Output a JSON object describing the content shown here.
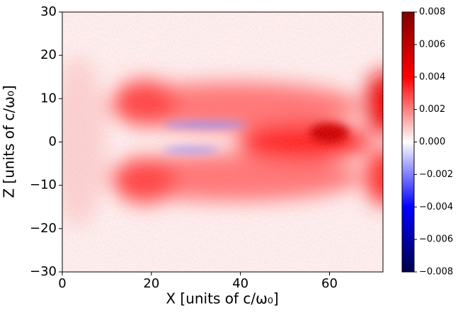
{
  "chart_data": {
    "type": "heatmap",
    "xlabel": "X [units of c/ω₀]",
    "ylabel": "Z [units of c/ω₀]",
    "xlim": [
      0,
      72
    ],
    "xticks": [
      0,
      20,
      40,
      60
    ],
    "ylim": [
      -30,
      30
    ],
    "yticks": [
      {
        "value": -30,
        "label": "−30"
      },
      {
        "value": -20,
        "label": "−20"
      },
      {
        "value": -10,
        "label": "−10"
      },
      0,
      10,
      20,
      30
    ],
    "colorbar_lim": [
      -0.008,
      0.008
    ],
    "colorbar_ticks": [
      {
        "value": -0.008,
        "label": "−0.008"
      },
      {
        "value": -0.006,
        "label": "−0.006"
      },
      {
        "value": -0.004,
        "label": "−0.004"
      },
      {
        "value": -0.002,
        "label": "−0.002"
      },
      {
        "value": 0,
        "label": "0.000"
      },
      0.002,
      0.004,
      0.006,
      0.008
    ],
    "colormap": [
      "#00004c",
      "#0000ff",
      "#ffffff",
      "#ff0000",
      "#800000"
    ]
  }
}
